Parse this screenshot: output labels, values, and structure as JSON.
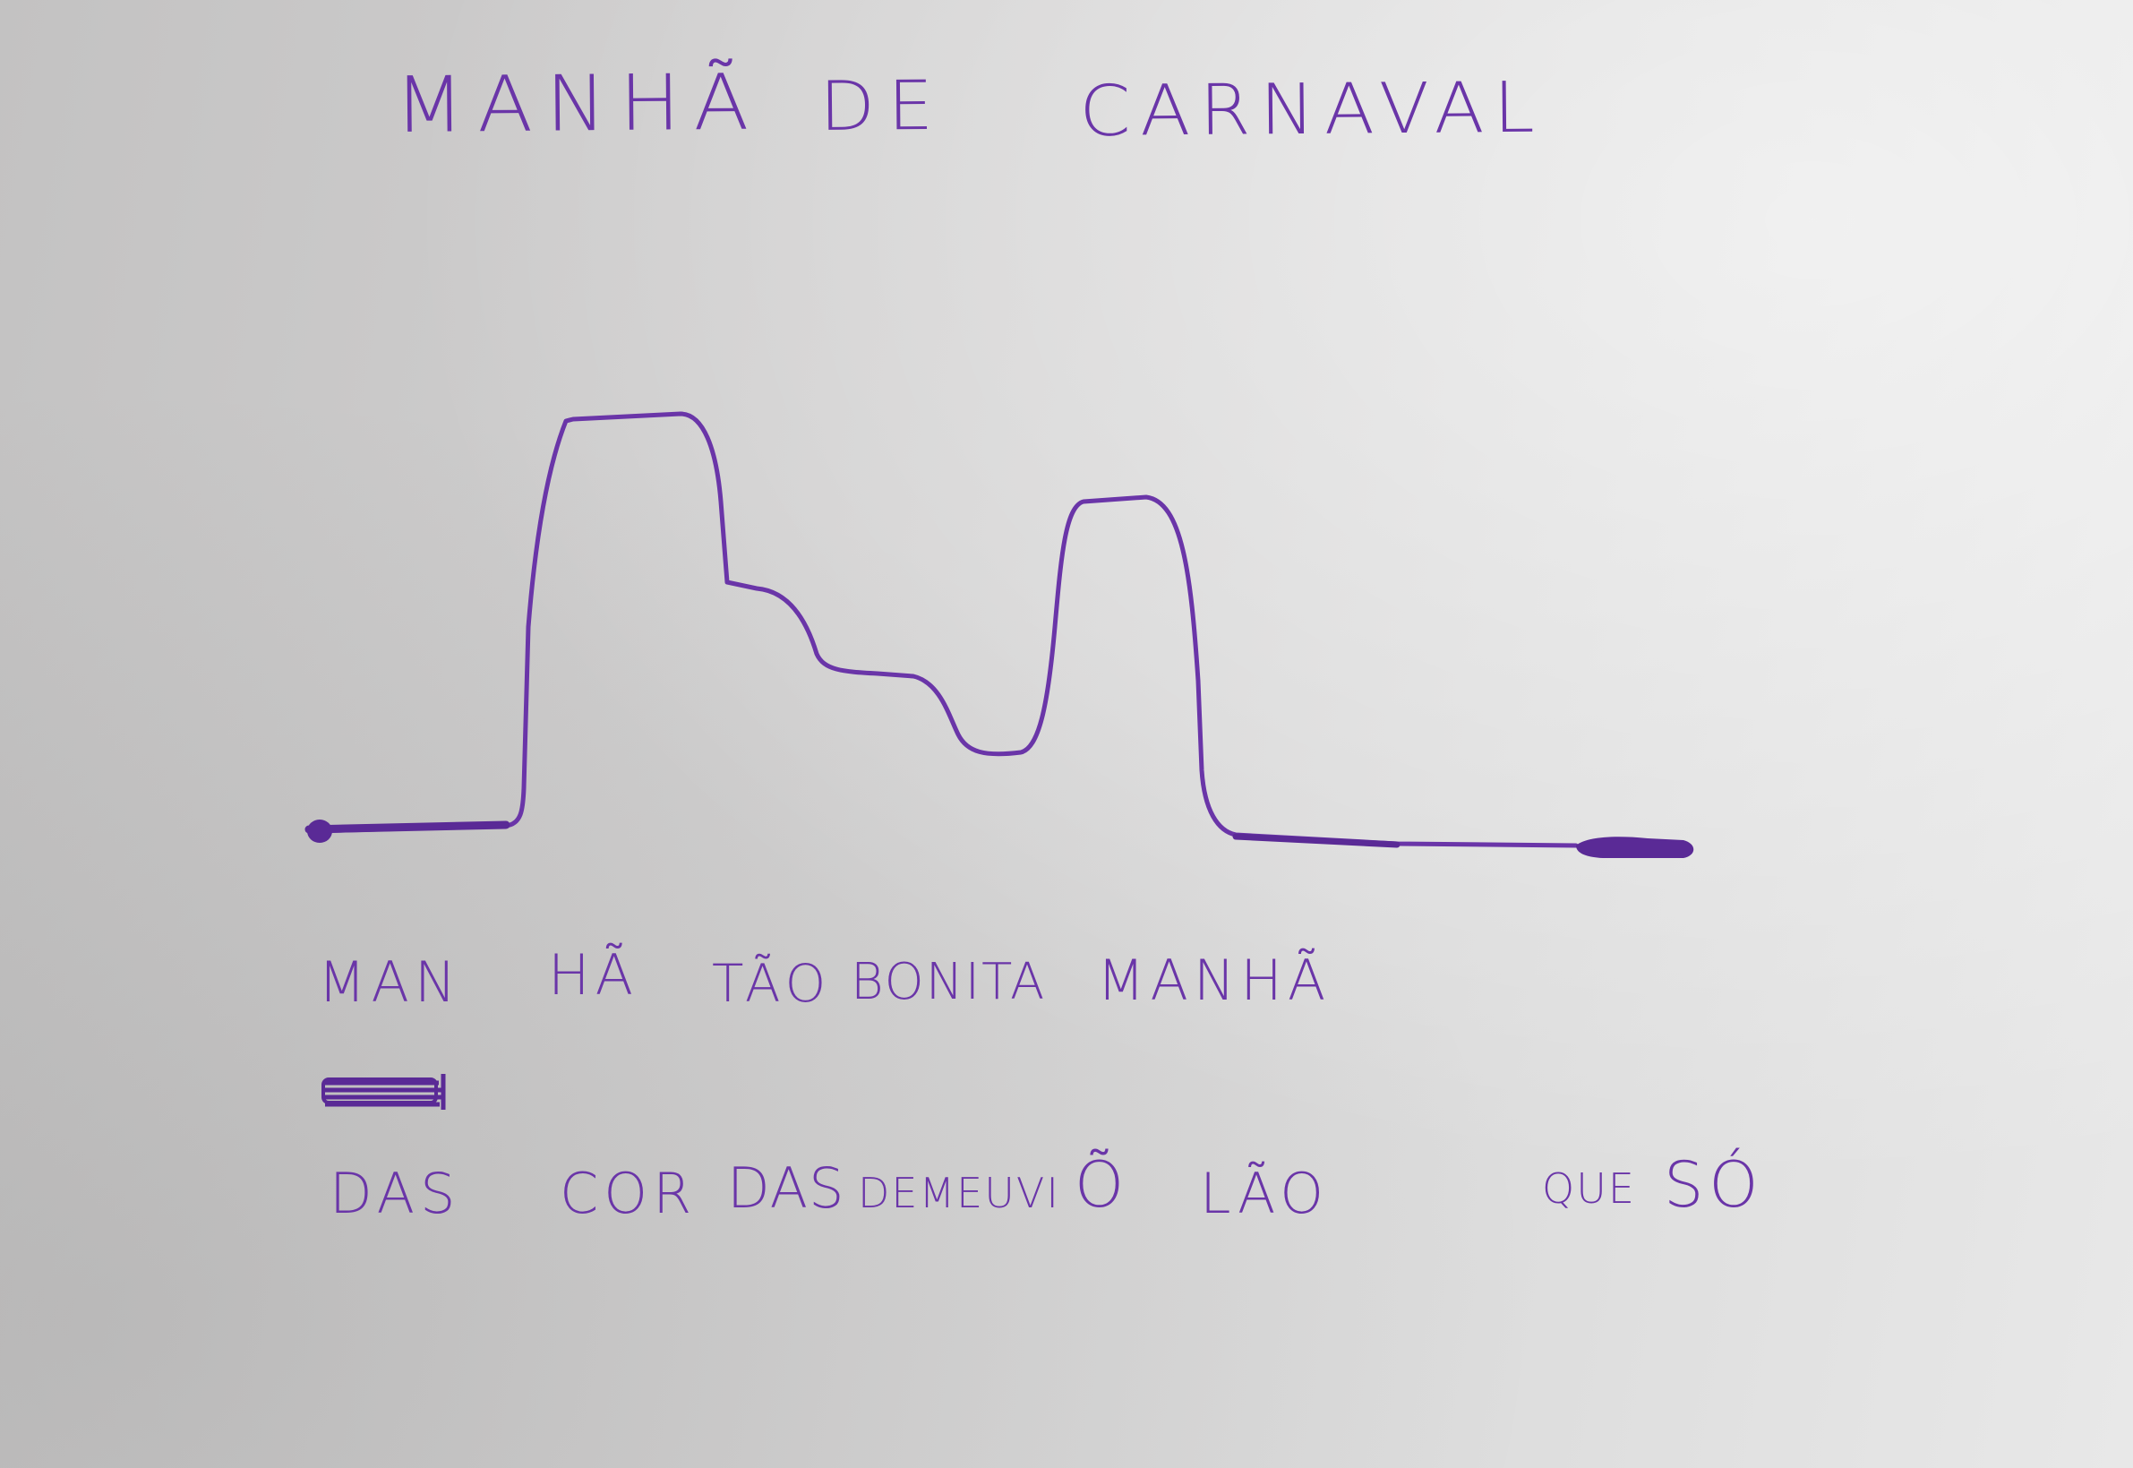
{
  "colors": {
    "ink": "#6a35a8",
    "paper": "#d4d3d3"
  },
  "title": {
    "words": [
      "MANHÃ",
      "DE",
      "CARNAVAL"
    ]
  },
  "lyrics": {
    "line1": [
      "MAN",
      "HÃ",
      "TÃO",
      "BONITA",
      "MANHÃ"
    ],
    "scribble_icon": "scribbled-out-word-icon",
    "line2": [
      "DAS",
      "COR",
      "DAS",
      "DEMEUVI",
      "Õ",
      "LÃO",
      "QUE",
      "SÓ"
    ]
  }
}
